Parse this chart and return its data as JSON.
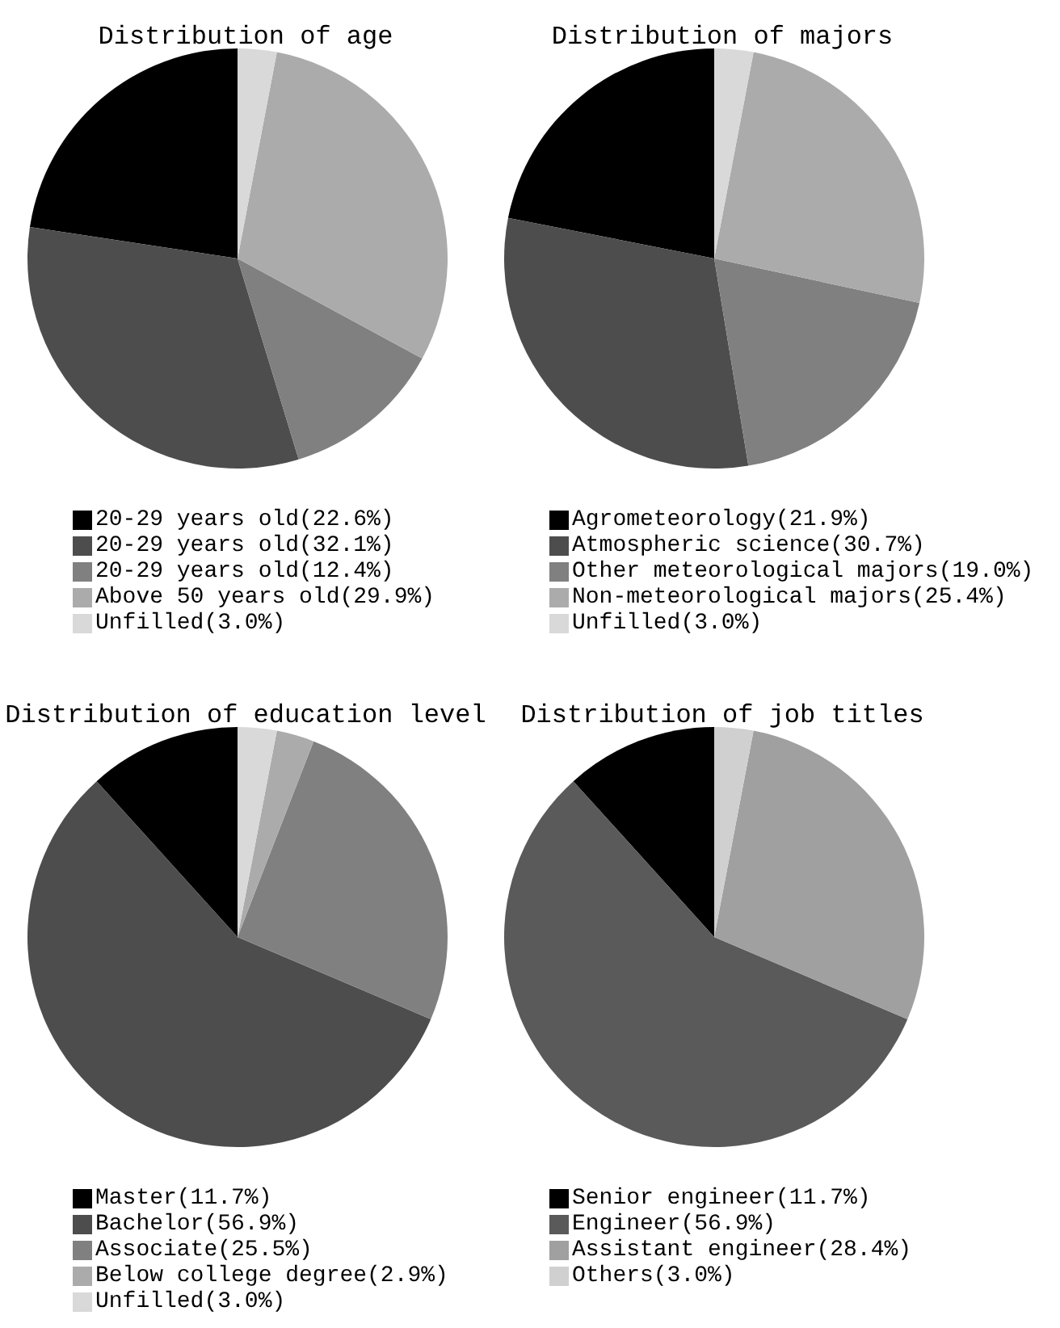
{
  "chart_data": [
    {
      "type": "pie",
      "title": "Distribution of age",
      "categories": [
        "20-29 years old(22.6%)",
        "20-29 years old(32.1%)",
        "20-29 years old(12.4%)",
        "Above 50 years old(29.9%)",
        "Unfilled(3.0%)"
      ],
      "values": [
        22.6,
        32.1,
        12.4,
        29.9,
        3.0
      ],
      "colors": [
        "#000000",
        "#4d4d4d",
        "#808080",
        "#ababab",
        "#d9d9d9"
      ],
      "legend": "bottom"
    },
    {
      "type": "pie",
      "title": "Distribution of majors",
      "categories": [
        "Agrometeorology(21.9%)",
        "Atmospheric science(30.7%)",
        "Other meteorological majors(19.0%)",
        "Non-meteorological majors(25.4%)",
        "Unfilled(3.0%)"
      ],
      "values": [
        21.9,
        30.7,
        19.0,
        25.4,
        3.0
      ],
      "colors": [
        "#000000",
        "#4d4d4d",
        "#808080",
        "#ababab",
        "#d9d9d9"
      ],
      "legend": "bottom"
    },
    {
      "type": "pie",
      "title": "Distribution of education level",
      "categories": [
        "Master(11.7%)",
        "Bachelor(56.9%)",
        "Associate(25.5%)",
        "Below college degree(2.9%)",
        "Unfilled(3.0%)"
      ],
      "values": [
        11.7,
        56.9,
        25.5,
        2.9,
        3.0
      ],
      "colors": [
        "#000000",
        "#4d4d4d",
        "#808080",
        "#ababab",
        "#d9d9d9"
      ],
      "legend": "bottom"
    },
    {
      "type": "pie",
      "title": "Distribution of job titles",
      "categories": [
        "Senior engineer(11.7%)",
        "Engineer(56.9%)",
        "Assistant engineer(28.4%)",
        "Others(3.0%)"
      ],
      "values": [
        11.7,
        56.9,
        28.4,
        3.0
      ],
      "colors": [
        "#000000",
        "#5a5a5a",
        "#a0a0a0",
        "#d0d0d0"
      ],
      "legend": "bottom"
    }
  ]
}
